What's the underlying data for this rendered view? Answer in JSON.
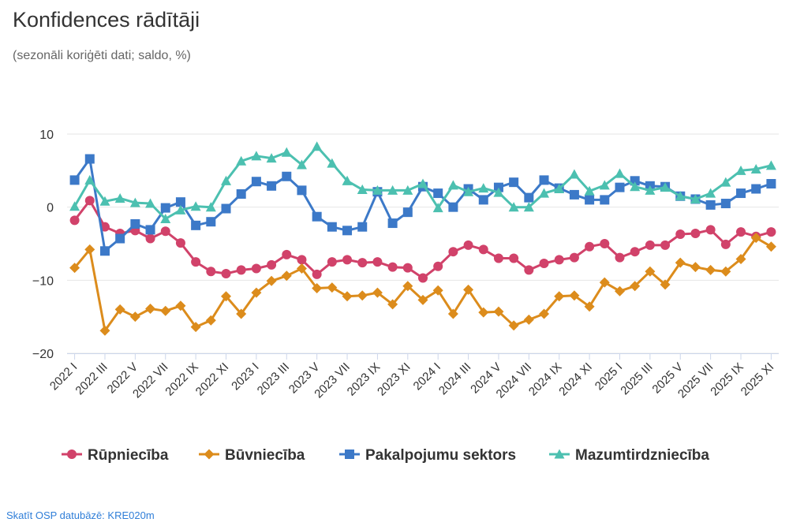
{
  "title": "Konfidences rādītāji",
  "subtitle": "(sezonāli koriģēti dati; saldo, %)",
  "source_link": "Skatīt OSP datubāzē: KRE020m",
  "chart_data": {
    "type": "line",
    "ylim": [
      -20,
      10
    ],
    "yticks": [
      10,
      0,
      -10,
      -20
    ],
    "ytick_labels": [
      "10",
      "0",
      "−10",
      "−20"
    ],
    "grid": "horizontal",
    "legend_position": "bottom",
    "x": [
      "2022 I",
      "2022 II",
      "2022 III",
      "2022 IV",
      "2022 V",
      "2022 VI",
      "2022 VII",
      "2022 VIII",
      "2022 IX",
      "2022 X",
      "2022 XI",
      "2022 XII",
      "2023 I",
      "2023 II",
      "2023 III",
      "2023 IV",
      "2023 V",
      "2023 VI",
      "2023 VII",
      "2023 VIII",
      "2023 IX",
      "2023 X",
      "2023 XI",
      "2023 XII",
      "2024 I",
      "2024 II",
      "2024 III",
      "2024 IV",
      "2024 V",
      "2024 VI",
      "2024 VII",
      "2024 VIII",
      "2024 IX",
      "2024 X",
      "2024 XI",
      "2024 XII",
      "2025 I",
      "2025 II",
      "2025 III",
      "2025 IV",
      "2025 V",
      "2025 VI",
      "2025 VII",
      "2025 VIII",
      "2025 IX",
      "2025 X",
      "2025 XI"
    ],
    "xtick_labels": [
      "2022 I",
      "2022 III",
      "2022 V",
      "2022 VII",
      "2022 IX",
      "2022 XI",
      "2023 I",
      "2023 III",
      "2023 V",
      "2023 VII",
      "2023 IX",
      "2023 XI",
      "2024 I",
      "2024 III",
      "2024 V",
      "2024 VII",
      "2024 IX",
      "2024 XI",
      "2025 I",
      "2025 III",
      "2025 V",
      "2025 VII",
      "2025 IX",
      "2025 XI"
    ],
    "series": [
      {
        "name": "Rūpniecība",
        "color": "#d1426a",
        "marker": "circle",
        "values": [
          -1.8,
          0.9,
          -2.7,
          -3.6,
          -3.2,
          -4.3,
          -3.3,
          -4.9,
          -7.5,
          -8.8,
          -9.1,
          -8.6,
          -8.4,
          -7.9,
          -6.5,
          -7.2,
          -9.2,
          -7.5,
          -7.2,
          -7.6,
          -7.5,
          -8.2,
          -8.3,
          -9.7,
          -8.1,
          -6.1,
          -5.2,
          -5.8,
          -7.0,
          -7.0,
          -8.6,
          -7.7,
          -7.2,
          -6.9,
          -5.4,
          -5.0,
          -6.9,
          -6.1,
          -5.2,
          -5.2,
          -3.7,
          -3.6,
          -3.1,
          -5.1,
          -3.4,
          -4.0,
          -3.4
        ]
      },
      {
        "name": "Būvniecība",
        "color": "#dc8c1c",
        "marker": "diamond",
        "values": [
          -8.3,
          -5.8,
          -16.9,
          -14.0,
          -15.0,
          -13.9,
          -14.2,
          -13.5,
          -16.4,
          -15.5,
          -12.2,
          -14.6,
          -11.7,
          -10.1,
          -9.4,
          -8.4,
          -11.1,
          -11.0,
          -12.2,
          -12.1,
          -11.7,
          -13.3,
          -10.8,
          -12.7,
          -11.4,
          -14.6,
          -11.3,
          -14.4,
          -14.3,
          -16.2,
          -15.4,
          -14.6,
          -12.2,
          -12.1,
          -13.6,
          -10.3,
          -11.5,
          -10.8,
          -8.8,
          -10.6,
          -7.6,
          -8.2,
          -8.6,
          -8.8,
          -7.1,
          -4.2,
          -5.4
        ]
      },
      {
        "name": "Pakalpojumu sektors",
        "color": "#3c79c8",
        "marker": "square",
        "values": [
          3.7,
          6.6,
          -6.0,
          -4.3,
          -2.3,
          -3.1,
          -0.1,
          0.7,
          -2.5,
          -2.0,
          -0.2,
          1.8,
          3.5,
          2.9,
          4.2,
          2.3,
          -1.3,
          -2.7,
          -3.2,
          -2.7,
          2.1,
          -2.2,
          -0.7,
          2.8,
          1.9,
          0.0,
          2.5,
          1.0,
          2.7,
          3.4,
          1.3,
          3.7,
          2.6,
          1.7,
          1.0,
          1.0,
          2.7,
          3.6,
          2.9,
          2.8,
          1.5,
          1.1,
          0.3,
          0.5,
          1.9,
          2.5,
          3.2
        ]
      },
      {
        "name": "Mazumtirdzniecība",
        "color": "#4cc0b0",
        "marker": "triangle",
        "values": [
          0.1,
          3.7,
          0.8,
          1.2,
          0.6,
          0.5,
          -1.6,
          -0.4,
          0.1,
          0.0,
          3.6,
          6.3,
          7.0,
          6.7,
          7.5,
          5.8,
          8.3,
          6.0,
          3.6,
          2.4,
          2.3,
          2.3,
          2.3,
          3.2,
          -0.1,
          3.0,
          2.1,
          2.6,
          2.0,
          0.0,
          0.0,
          1.9,
          2.5,
          4.5,
          2.2,
          3.0,
          4.6,
          2.8,
          2.3,
          2.7,
          1.5,
          1.1,
          1.9,
          3.4,
          5.0,
          5.2,
          5.7
        ]
      }
    ]
  }
}
